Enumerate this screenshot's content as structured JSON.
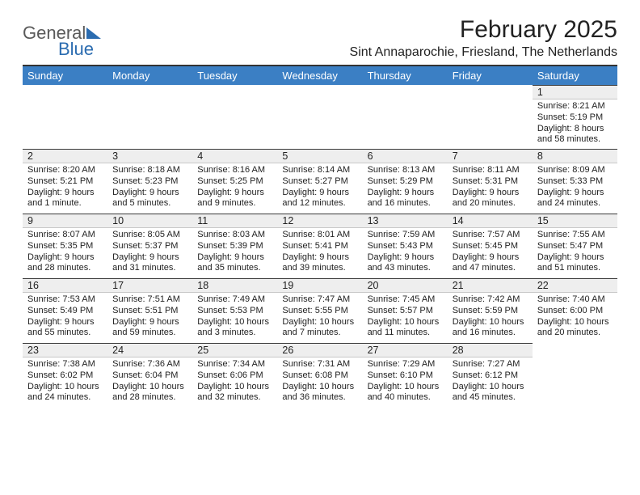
{
  "logo": {
    "word1": "General",
    "word2": "Blue"
  },
  "title": "February 2025",
  "location": "Sint Annaparochie, Friesland, The Netherlands",
  "day_headers": [
    "Sunday",
    "Monday",
    "Tuesday",
    "Wednesday",
    "Thursday",
    "Friday",
    "Saturday"
  ],
  "colors": {
    "header_bg": "#3b7fc4",
    "header_text": "#ffffff",
    "daynum_bg": "#eeeeee",
    "rule": "#3a3a3a",
    "logo_gray": "#5a5a5a",
    "logo_blue": "#2b6cb0"
  },
  "typography": {
    "title_fontsize": 30,
    "location_fontsize": 16,
    "dayhead_fontsize": 13,
    "daynum_fontsize": 12.5,
    "body_fontsize": 11
  },
  "weeks": [
    [
      {
        "num": "",
        "lines": [
          "",
          "",
          "",
          ""
        ]
      },
      {
        "num": "",
        "lines": [
          "",
          "",
          "",
          ""
        ]
      },
      {
        "num": "",
        "lines": [
          "",
          "",
          "",
          ""
        ]
      },
      {
        "num": "",
        "lines": [
          "",
          "",
          "",
          ""
        ]
      },
      {
        "num": "",
        "lines": [
          "",
          "",
          "",
          ""
        ]
      },
      {
        "num": "",
        "lines": [
          "",
          "",
          "",
          ""
        ]
      },
      {
        "num": "1",
        "lines": [
          "Sunrise: 8:21 AM",
          "Sunset: 5:19 PM",
          "Daylight: 8 hours",
          "and 58 minutes."
        ]
      }
    ],
    [
      {
        "num": "2",
        "lines": [
          "Sunrise: 8:20 AM",
          "Sunset: 5:21 PM",
          "Daylight: 9 hours",
          "and 1 minute."
        ]
      },
      {
        "num": "3",
        "lines": [
          "Sunrise: 8:18 AM",
          "Sunset: 5:23 PM",
          "Daylight: 9 hours",
          "and 5 minutes."
        ]
      },
      {
        "num": "4",
        "lines": [
          "Sunrise: 8:16 AM",
          "Sunset: 5:25 PM",
          "Daylight: 9 hours",
          "and 9 minutes."
        ]
      },
      {
        "num": "5",
        "lines": [
          "Sunrise: 8:14 AM",
          "Sunset: 5:27 PM",
          "Daylight: 9 hours",
          "and 12 minutes."
        ]
      },
      {
        "num": "6",
        "lines": [
          "Sunrise: 8:13 AM",
          "Sunset: 5:29 PM",
          "Daylight: 9 hours",
          "and 16 minutes."
        ]
      },
      {
        "num": "7",
        "lines": [
          "Sunrise: 8:11 AM",
          "Sunset: 5:31 PM",
          "Daylight: 9 hours",
          "and 20 minutes."
        ]
      },
      {
        "num": "8",
        "lines": [
          "Sunrise: 8:09 AM",
          "Sunset: 5:33 PM",
          "Daylight: 9 hours",
          "and 24 minutes."
        ]
      }
    ],
    [
      {
        "num": "9",
        "lines": [
          "Sunrise: 8:07 AM",
          "Sunset: 5:35 PM",
          "Daylight: 9 hours",
          "and 28 minutes."
        ]
      },
      {
        "num": "10",
        "lines": [
          "Sunrise: 8:05 AM",
          "Sunset: 5:37 PM",
          "Daylight: 9 hours",
          "and 31 minutes."
        ]
      },
      {
        "num": "11",
        "lines": [
          "Sunrise: 8:03 AM",
          "Sunset: 5:39 PM",
          "Daylight: 9 hours",
          "and 35 minutes."
        ]
      },
      {
        "num": "12",
        "lines": [
          "Sunrise: 8:01 AM",
          "Sunset: 5:41 PM",
          "Daylight: 9 hours",
          "and 39 minutes."
        ]
      },
      {
        "num": "13",
        "lines": [
          "Sunrise: 7:59 AM",
          "Sunset: 5:43 PM",
          "Daylight: 9 hours",
          "and 43 minutes."
        ]
      },
      {
        "num": "14",
        "lines": [
          "Sunrise: 7:57 AM",
          "Sunset: 5:45 PM",
          "Daylight: 9 hours",
          "and 47 minutes."
        ]
      },
      {
        "num": "15",
        "lines": [
          "Sunrise: 7:55 AM",
          "Sunset: 5:47 PM",
          "Daylight: 9 hours",
          "and 51 minutes."
        ]
      }
    ],
    [
      {
        "num": "16",
        "lines": [
          "Sunrise: 7:53 AM",
          "Sunset: 5:49 PM",
          "Daylight: 9 hours",
          "and 55 minutes."
        ]
      },
      {
        "num": "17",
        "lines": [
          "Sunrise: 7:51 AM",
          "Sunset: 5:51 PM",
          "Daylight: 9 hours",
          "and 59 minutes."
        ]
      },
      {
        "num": "18",
        "lines": [
          "Sunrise: 7:49 AM",
          "Sunset: 5:53 PM",
          "Daylight: 10 hours",
          "and 3 minutes."
        ]
      },
      {
        "num": "19",
        "lines": [
          "Sunrise: 7:47 AM",
          "Sunset: 5:55 PM",
          "Daylight: 10 hours",
          "and 7 minutes."
        ]
      },
      {
        "num": "20",
        "lines": [
          "Sunrise: 7:45 AM",
          "Sunset: 5:57 PM",
          "Daylight: 10 hours",
          "and 11 minutes."
        ]
      },
      {
        "num": "21",
        "lines": [
          "Sunrise: 7:42 AM",
          "Sunset: 5:59 PM",
          "Daylight: 10 hours",
          "and 16 minutes."
        ]
      },
      {
        "num": "22",
        "lines": [
          "Sunrise: 7:40 AM",
          "Sunset: 6:00 PM",
          "Daylight: 10 hours",
          "and 20 minutes."
        ]
      }
    ],
    [
      {
        "num": "23",
        "lines": [
          "Sunrise: 7:38 AM",
          "Sunset: 6:02 PM",
          "Daylight: 10 hours",
          "and 24 minutes."
        ]
      },
      {
        "num": "24",
        "lines": [
          "Sunrise: 7:36 AM",
          "Sunset: 6:04 PM",
          "Daylight: 10 hours",
          "and 28 minutes."
        ]
      },
      {
        "num": "25",
        "lines": [
          "Sunrise: 7:34 AM",
          "Sunset: 6:06 PM",
          "Daylight: 10 hours",
          "and 32 minutes."
        ]
      },
      {
        "num": "26",
        "lines": [
          "Sunrise: 7:31 AM",
          "Sunset: 6:08 PM",
          "Daylight: 10 hours",
          "and 36 minutes."
        ]
      },
      {
        "num": "27",
        "lines": [
          "Sunrise: 7:29 AM",
          "Sunset: 6:10 PM",
          "Daylight: 10 hours",
          "and 40 minutes."
        ]
      },
      {
        "num": "28",
        "lines": [
          "Sunrise: 7:27 AM",
          "Sunset: 6:12 PM",
          "Daylight: 10 hours",
          "and 45 minutes."
        ]
      },
      {
        "num": "",
        "lines": [
          "",
          "",
          "",
          ""
        ]
      }
    ]
  ]
}
